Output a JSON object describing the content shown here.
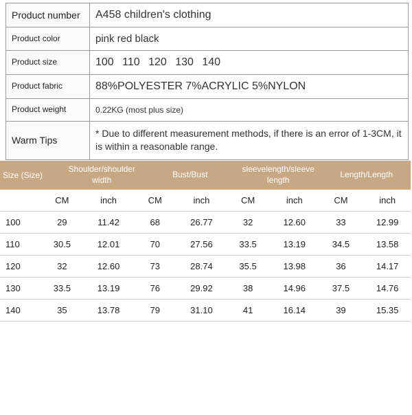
{
  "info": {
    "rows": [
      {
        "label": "Product number",
        "value": "A458 children's clothing",
        "cls": "lg",
        "label_cls": ""
      },
      {
        "label": "Product color",
        "value": "pink red black",
        "cls": "md",
        "label_cls": "sm"
      },
      {
        "label": "Product size",
        "value": "100  110  120  130  140",
        "cls": "lg",
        "label_cls": "sm"
      },
      {
        "label": "Product fabric",
        "value": "88%POLYESTER   7%ACRYLIC   5%NYLON",
        "cls": "lg",
        "label_cls": "sm"
      },
      {
        "label": "Product weight",
        "value": "0.22KG (most plus size)",
        "cls": "sm",
        "label_cls": "sm"
      },
      {
        "label": "Warm Tips",
        "value": "* Due to different measurement methods, if there is an error of 1-3CM, it is within a reasonable range.",
        "cls": "tips",
        "label_cls": ""
      }
    ]
  },
  "sizeHeader": {
    "size": "Size (Size)",
    "cols": [
      "Shoulder/shoulder width",
      "Bust/Bust",
      "sleevelength/sleeve length",
      "Length/Length"
    ]
  },
  "units": [
    "CM",
    "inch",
    "CM",
    "inch",
    "CM",
    "inch",
    "CM",
    "inch"
  ],
  "sizes": [
    {
      "label": "100",
      "cells": [
        "29",
        "11.42",
        "68",
        "26.77",
        "32",
        "12.60",
        "33",
        "12.99"
      ]
    },
    {
      "label": "110",
      "cells": [
        "30.5",
        "12.01",
        "70",
        "27.56",
        "33.5",
        "13.19",
        "34.5",
        "13.58"
      ]
    },
    {
      "label": "120",
      "cells": [
        "32",
        "12.60",
        "73",
        "28.74",
        "35.5",
        "13.98",
        "36",
        "14.17"
      ]
    },
    {
      "label": "130",
      "cells": [
        "33.5",
        "13.19",
        "76",
        "29.92",
        "38",
        "14.96",
        "37.5",
        "14.76"
      ]
    },
    {
      "label": "140",
      "cells": [
        "35",
        "13.78",
        "79",
        "31.10",
        "41",
        "16.14",
        "39",
        "15.35"
      ]
    }
  ],
  "colors": {
    "header_bg": "#c8a884",
    "border": "#999999",
    "text": "#222222"
  }
}
